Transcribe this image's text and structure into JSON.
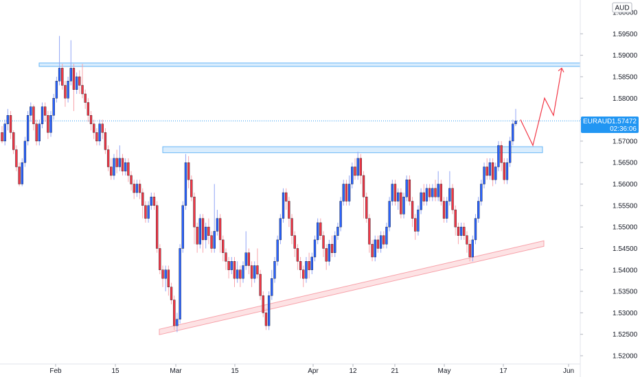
{
  "chart_data": {
    "type": "candlestick",
    "symbol": "EURAUD",
    "currency": "AUD",
    "last_price": "1.57472",
    "countdown": "02:36:06",
    "y_ticks": [
      "1.60000",
      "1.59500",
      "1.59000",
      "1.58500",
      "1.58000",
      "1.57500",
      "1.57000",
      "1.56500",
      "1.56000",
      "1.55500",
      "1.55000",
      "1.54500",
      "1.54000",
      "1.53500",
      "1.53000",
      "1.52500",
      "1.52000"
    ],
    "x_ticks": [
      "Feb",
      "15",
      "Mar",
      "15",
      "Apr",
      "12",
      "21",
      "May",
      "17",
      "Jun"
    ],
    "colors": {
      "up": "#2962ff",
      "down": "#f23645",
      "zone_fill": "#bbdefb",
      "zone_border": "#64b5f6",
      "trend": "#f7a1a9",
      "projection": "#f23645",
      "label_bg": "#2196f3"
    },
    "resistance_zones": [
      {
        "y_low": 1.5876,
        "y_high": 1.5882
      },
      {
        "y_low": 1.5673,
        "y_high": 1.5687
      }
    ],
    "trendline": {
      "start": 1.5257,
      "end": 1.5463
    },
    "projection_path": [
      1.575,
      1.569,
      1.58,
      1.576,
      1.587
    ],
    "candles": [
      [
        1.572,
        1.57,
        1.5735,
        1.5695
      ],
      [
        1.57,
        1.574,
        1.575,
        1.569
      ],
      [
        1.574,
        1.576,
        1.5775,
        1.5725
      ],
      [
        1.576,
        1.572,
        1.577,
        1.5705
      ],
      [
        1.572,
        1.568,
        1.5725,
        1.567
      ],
      [
        1.568,
        1.564,
        1.569,
        1.563
      ],
      [
        1.564,
        1.56,
        1.565,
        1.5595
      ],
      [
        1.56,
        1.565,
        1.566,
        1.5595
      ],
      [
        1.565,
        1.57,
        1.571,
        1.564
      ],
      [
        1.57,
        1.576,
        1.577,
        1.569
      ],
      [
        1.576,
        1.578,
        1.579,
        1.5745
      ],
      [
        1.578,
        1.574,
        1.5785,
        1.5725
      ],
      [
        1.574,
        1.57,
        1.575,
        1.569
      ],
      [
        1.57,
        1.574,
        1.575,
        1.569
      ],
      [
        1.574,
        1.578,
        1.579,
        1.573
      ],
      [
        1.578,
        1.576,
        1.579,
        1.5745
      ],
      [
        1.576,
        1.572,
        1.577,
        1.5705
      ],
      [
        1.572,
        1.576,
        1.577,
        1.571
      ],
      [
        1.576,
        1.58,
        1.581,
        1.575
      ],
      [
        1.58,
        1.584,
        1.585,
        1.579
      ],
      [
        1.584,
        1.587,
        1.5945,
        1.583
      ],
      [
        1.587,
        1.583,
        1.588,
        1.582
      ],
      [
        1.583,
        1.58,
        1.584,
        1.578
      ],
      [
        1.58,
        1.584,
        1.585,
        1.579
      ],
      [
        1.584,
        1.587,
        1.5935,
        1.583
      ],
      [
        1.587,
        1.582,
        1.588,
        1.577
      ],
      [
        1.582,
        1.585,
        1.586,
        1.581
      ],
      [
        1.585,
        1.583,
        1.5865,
        1.581
      ],
      [
        1.583,
        1.581,
        1.588,
        1.58
      ],
      [
        1.581,
        1.579,
        1.582,
        1.5775
      ],
      [
        1.579,
        1.576,
        1.58,
        1.5745
      ],
      [
        1.576,
        1.574,
        1.577,
        1.5725
      ],
      [
        1.574,
        1.572,
        1.575,
        1.5705
      ],
      [
        1.572,
        1.57,
        1.573,
        1.569
      ],
      [
        1.57,
        1.574,
        1.575,
        1.569
      ],
      [
        1.574,
        1.572,
        1.575,
        1.5705
      ],
      [
        1.572,
        1.568,
        1.573,
        1.567
      ],
      [
        1.568,
        1.564,
        1.569,
        1.563
      ],
      [
        1.564,
        1.562,
        1.566,
        1.561
      ],
      [
        1.562,
        1.566,
        1.567,
        1.561
      ],
      [
        1.566,
        1.564,
        1.568,
        1.5625
      ],
      [
        1.564,
        1.566,
        1.569,
        1.563
      ],
      [
        1.566,
        1.563,
        1.567,
        1.562
      ],
      [
        1.563,
        1.565,
        1.566,
        1.562
      ],
      [
        1.565,
        1.562,
        1.566,
        1.5605
      ],
      [
        1.562,
        1.56,
        1.563,
        1.5585
      ],
      [
        1.56,
        1.558,
        1.561,
        1.5565
      ],
      [
        1.558,
        1.56,
        1.561,
        1.557
      ],
      [
        1.56,
        1.558,
        1.561,
        1.5565
      ],
      [
        1.558,
        1.555,
        1.559,
        1.552
      ],
      [
        1.555,
        1.552,
        1.556,
        1.551
      ],
      [
        1.552,
        1.555,
        1.556,
        1.551
      ],
      [
        1.555,
        1.557,
        1.558,
        1.554
      ],
      [
        1.557,
        1.555,
        1.558,
        1.554
      ],
      [
        1.555,
        1.545,
        1.556,
        1.544
      ],
      [
        1.545,
        1.54,
        1.546,
        1.539
      ],
      [
        1.54,
        1.538,
        1.541,
        1.536
      ],
      [
        1.538,
        1.54,
        1.541,
        1.535
      ],
      [
        1.54,
        1.536,
        1.541,
        1.534
      ],
      [
        1.536,
        1.533,
        1.537,
        1.532
      ],
      [
        1.533,
        1.527,
        1.534,
        1.526
      ],
      [
        1.527,
        1.5285,
        1.53,
        1.5255
      ],
      [
        1.5285,
        1.545,
        1.546,
        1.5275
      ],
      [
        1.545,
        1.555,
        1.556,
        1.544
      ],
      [
        1.555,
        1.565,
        1.567,
        1.554
      ],
      [
        1.565,
        1.561,
        1.5665,
        1.559
      ],
      [
        1.561,
        1.557,
        1.562,
        1.556
      ],
      [
        1.557,
        1.55,
        1.558,
        1.546
      ],
      [
        1.55,
        1.546,
        1.551,
        1.544
      ],
      [
        1.546,
        1.552,
        1.553,
        1.545
      ],
      [
        1.552,
        1.547,
        1.553,
        1.544
      ],
      [
        1.547,
        1.55,
        1.551,
        1.545
      ],
      [
        1.55,
        1.548,
        1.552,
        1.546
      ],
      [
        1.548,
        1.545,
        1.549,
        1.544
      ],
      [
        1.545,
        1.549,
        1.56,
        1.544
      ],
      [
        1.549,
        1.552,
        1.554,
        1.548
      ],
      [
        1.552,
        1.547,
        1.553,
        1.544
      ],
      [
        1.547,
        1.544,
        1.548,
        1.542
      ],
      [
        1.544,
        1.542,
        1.545,
        1.54
      ],
      [
        1.542,
        1.54,
        1.543,
        1.538
      ],
      [
        1.54,
        1.542,
        1.543,
        1.539
      ],
      [
        1.542,
        1.538,
        1.543,
        1.536
      ],
      [
        1.538,
        1.54,
        1.542,
        1.537
      ],
      [
        1.54,
        1.538,
        1.541,
        1.536
      ],
      [
        1.538,
        1.541,
        1.542,
        1.537
      ],
      [
        1.541,
        1.544,
        1.549,
        1.54
      ],
      [
        1.544,
        1.541,
        1.545,
        1.539
      ],
      [
        1.541,
        1.538,
        1.542,
        1.536
      ],
      [
        1.538,
        1.541,
        1.542,
        1.537
      ],
      [
        1.541,
        1.539,
        1.545,
        1.538
      ],
      [
        1.539,
        1.534,
        1.54,
        1.533
      ],
      [
        1.534,
        1.53,
        1.535,
        1.529
      ],
      [
        1.53,
        1.527,
        1.531,
        1.526
      ],
      [
        1.527,
        1.534,
        1.535,
        1.526
      ],
      [
        1.534,
        1.538,
        1.54,
        1.533
      ],
      [
        1.538,
        1.542,
        1.543,
        1.537
      ],
      [
        1.542,
        1.547,
        1.548,
        1.541
      ],
      [
        1.547,
        1.552,
        1.553,
        1.546
      ],
      [
        1.552,
        1.558,
        1.559,
        1.551
      ],
      [
        1.558,
        1.556,
        1.559,
        1.554
      ],
      [
        1.556,
        1.552,
        1.557,
        1.55
      ],
      [
        1.552,
        1.548,
        1.553,
        1.546
      ],
      [
        1.548,
        1.545,
        1.549,
        1.543
      ],
      [
        1.545,
        1.542,
        1.546,
        1.54
      ],
      [
        1.542,
        1.54,
        1.543,
        1.538
      ],
      [
        1.54,
        1.538,
        1.541,
        1.536
      ],
      [
        1.538,
        1.542,
        1.543,
        1.537
      ],
      [
        1.542,
        1.54,
        1.544,
        1.538
      ],
      [
        1.54,
        1.543,
        1.544,
        1.539
      ],
      [
        1.543,
        1.547,
        1.548,
        1.542
      ],
      [
        1.547,
        1.551,
        1.552,
        1.546
      ],
      [
        1.551,
        1.548,
        1.552,
        1.547
      ],
      [
        1.548,
        1.545,
        1.549,
        1.543
      ],
      [
        1.545,
        1.542,
        1.546,
        1.54
      ],
      [
        1.542,
        1.546,
        1.547,
        1.541
      ],
      [
        1.546,
        1.544,
        1.548,
        1.543
      ],
      [
        1.544,
        1.548,
        1.549,
        1.543
      ],
      [
        1.548,
        1.55,
        1.551,
        1.547
      ],
      [
        1.55,
        1.556,
        1.557,
        1.549
      ],
      [
        1.556,
        1.56,
        1.561,
        1.555
      ],
      [
        1.56,
        1.556,
        1.561,
        1.555
      ],
      [
        1.556,
        1.56,
        1.562,
        1.555
      ],
      [
        1.56,
        1.564,
        1.565,
        1.559
      ],
      [
        1.564,
        1.562,
        1.566,
        1.561
      ],
      [
        1.562,
        1.566,
        1.5675,
        1.561
      ],
      [
        1.566,
        1.562,
        1.567,
        1.56
      ],
      [
        1.562,
        1.557,
        1.563,
        1.552
      ],
      [
        1.557,
        1.552,
        1.558,
        1.551
      ],
      [
        1.552,
        1.546,
        1.553,
        1.544
      ],
      [
        1.546,
        1.543,
        1.547,
        1.542
      ],
      [
        1.543,
        1.547,
        1.548,
        1.542
      ],
      [
        1.547,
        1.545,
        1.548,
        1.544
      ],
      [
        1.545,
        1.548,
        1.549,
        1.544
      ],
      [
        1.548,
        1.546,
        1.549,
        1.545
      ],
      [
        1.546,
        1.55,
        1.551,
        1.545
      ],
      [
        1.55,
        1.556,
        1.557,
        1.549
      ],
      [
        1.556,
        1.56,
        1.561,
        1.555
      ],
      [
        1.56,
        1.556,
        1.561,
        1.555
      ],
      [
        1.556,
        1.558,
        1.559,
        1.554
      ],
      [
        1.558,
        1.553,
        1.559,
        1.552
      ],
      [
        1.553,
        1.557,
        1.558,
        1.552
      ],
      [
        1.557,
        1.561,
        1.562,
        1.556
      ],
      [
        1.561,
        1.556,
        1.562,
        1.555
      ],
      [
        1.556,
        1.552,
        1.557,
        1.55
      ],
      [
        1.552,
        1.549,
        1.553,
        1.547
      ],
      [
        1.549,
        1.554,
        1.555,
        1.548
      ],
      [
        1.554,
        1.558,
        1.559,
        1.553
      ],
      [
        1.558,
        1.556,
        1.56,
        1.555
      ],
      [
        1.556,
        1.559,
        1.56,
        1.555
      ],
      [
        1.559,
        1.557,
        1.56,
        1.556
      ],
      [
        1.557,
        1.559,
        1.56,
        1.556
      ],
      [
        1.559,
        1.557,
        1.561,
        1.556
      ],
      [
        1.557,
        1.56,
        1.563,
        1.556
      ],
      [
        1.56,
        1.556,
        1.561,
        1.555
      ],
      [
        1.556,
        1.552,
        1.557,
        1.551
      ],
      [
        1.552,
        1.556,
        1.557,
        1.551
      ],
      [
        1.556,
        1.559,
        1.563,
        1.555
      ],
      [
        1.559,
        1.554,
        1.56,
        1.553
      ],
      [
        1.554,
        1.55,
        1.555,
        1.548
      ],
      [
        1.55,
        1.548,
        1.551,
        1.546
      ],
      [
        1.548,
        1.55,
        1.551,
        1.547
      ],
      [
        1.55,
        1.548,
        1.551,
        1.547
      ],
      [
        1.548,
        1.546,
        1.549,
        1.544
      ],
      [
        1.546,
        1.543,
        1.547,
        1.542
      ],
      [
        1.543,
        1.547,
        1.548,
        1.542
      ],
      [
        1.547,
        1.552,
        1.553,
        1.546
      ],
      [
        1.552,
        1.556,
        1.557,
        1.551
      ],
      [
        1.556,
        1.56,
        1.561,
        1.555
      ],
      [
        1.56,
        1.564,
        1.565,
        1.559
      ],
      [
        1.564,
        1.562,
        1.566,
        1.561
      ],
      [
        1.562,
        1.565,
        1.566,
        1.561
      ],
      [
        1.565,
        1.561,
        1.566,
        1.5595
      ],
      [
        1.561,
        1.564,
        1.565,
        1.56
      ],
      [
        1.564,
        1.569,
        1.57,
        1.563
      ],
      [
        1.569,
        1.565,
        1.57,
        1.563
      ],
      [
        1.565,
        1.561,
        1.566,
        1.56
      ],
      [
        1.561,
        1.565,
        1.566,
        1.56
      ],
      [
        1.565,
        1.57,
        1.571,
        1.564
      ],
      [
        1.57,
        1.574,
        1.575,
        1.569
      ],
      [
        1.574,
        1.5747,
        1.5775,
        1.5735
      ]
    ]
  }
}
